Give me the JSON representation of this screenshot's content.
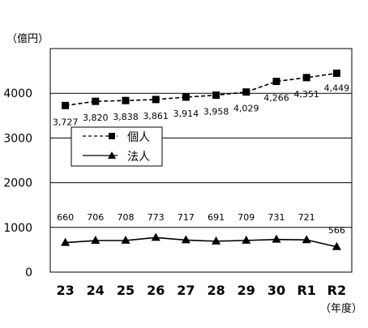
{
  "chart_data": {
    "type": "line",
    "unit_label": "（億円）",
    "x_unit_label": "（年度）",
    "categories": [
      "23",
      "24",
      "25",
      "26",
      "27",
      "28",
      "29",
      "30",
      "R1",
      "R2"
    ],
    "ylim": [
      0,
      5000
    ],
    "yticks": [
      "0",
      "1000",
      "2000",
      "3000",
      "4000"
    ],
    "ytick_values": [
      0,
      1000,
      2000,
      3000,
      4000
    ],
    "grid": true,
    "legend_position": "left",
    "series": [
      {
        "name": "個人",
        "marker": "square",
        "line_style": "dashed",
        "values": [
          3727,
          3820,
          3838,
          3861,
          3914,
          3958,
          4029,
          4266,
          4351,
          4449
        ],
        "labels": [
          "3,727",
          "3,820",
          "3,838",
          "3,861",
          "3,914",
          "3,958",
          "4,029",
          "4,266",
          "4,351",
          "4,449"
        ]
      },
      {
        "name": "法人",
        "marker": "triangle",
        "line_style": "solid",
        "values": [
          660,
          706,
          708,
          773,
          717,
          691,
          709,
          731,
          721,
          566
        ],
        "labels": [
          "660",
          "706",
          "708",
          "773",
          "717",
          "691",
          "709",
          "731",
          "721",
          "566"
        ]
      }
    ]
  },
  "colors": {
    "line": "#000000",
    "grid": "#000000",
    "background": "#ffffff"
  }
}
